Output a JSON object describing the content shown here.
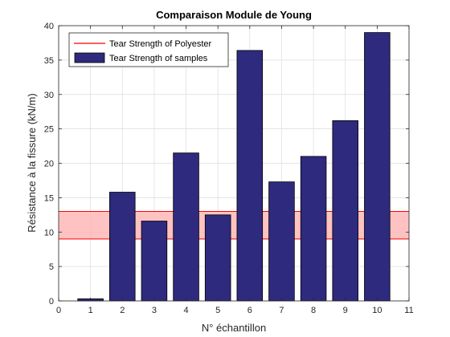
{
  "chart_data": {
    "type": "bar",
    "title": "Comparaison Module de Young",
    "xlabel": "N° échantillon",
    "ylabel": "Résistance à la fissure (kN/m)",
    "xlim": [
      0,
      11
    ],
    "ylim": [
      0,
      40
    ],
    "xticks": [
      0,
      1,
      2,
      3,
      4,
      5,
      6,
      7,
      8,
      9,
      10,
      11
    ],
    "yticks": [
      0,
      5,
      10,
      15,
      20,
      25,
      30,
      35,
      40
    ],
    "grid": true,
    "legend_position": "top-left",
    "series": [
      {
        "name": "Tear Strength of samples",
        "type": "bar",
        "color": "#2e2a7d",
        "x": [
          1,
          2,
          3,
          4,
          5,
          6,
          7,
          8,
          9,
          10
        ],
        "values": [
          0.3,
          15.8,
          11.6,
          21.5,
          12.5,
          36.4,
          17.3,
          21.0,
          26.2,
          39.0
        ]
      },
      {
        "name": "Tear Strength of Polyester",
        "type": "band",
        "color": "#ff0000",
        "fill": "#ffb3b3",
        "range": [
          9,
          13
        ]
      }
    ]
  }
}
